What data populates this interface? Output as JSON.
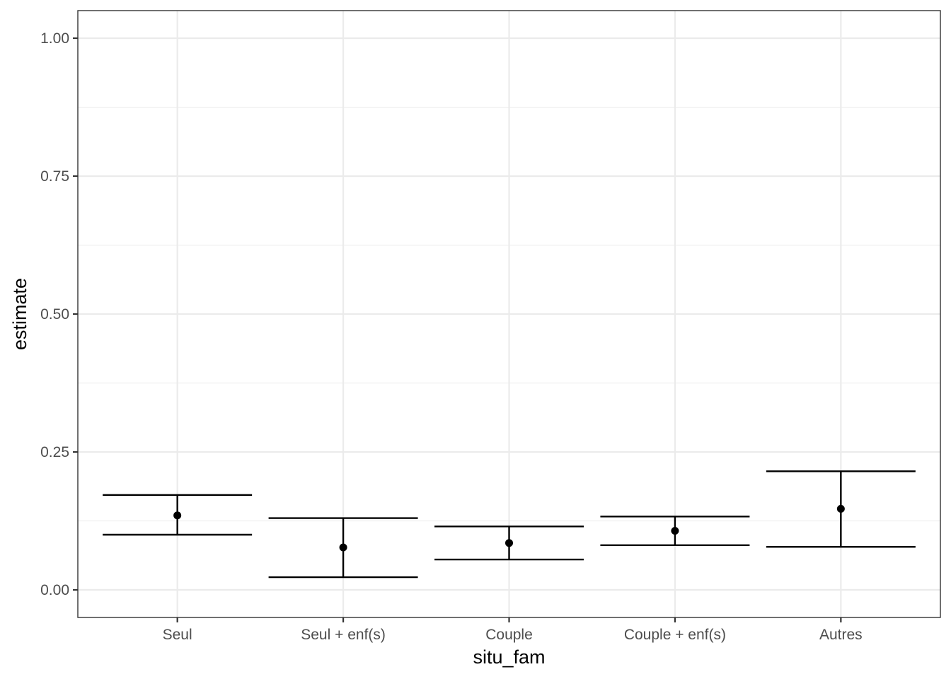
{
  "chart_data": {
    "type": "errorbar",
    "title": "",
    "xlabel": "situ_fam",
    "ylabel": "estimate",
    "ylim": [
      -0.05,
      1.05
    ],
    "yticks": [
      0.0,
      0.25,
      0.5,
      0.75,
      1.0
    ],
    "ytick_labels": [
      "0.00",
      "0.25",
      "0.50",
      "0.75",
      "1.00"
    ],
    "grid": true,
    "categories": [
      "Seul",
      "Seul + enf(s)",
      "Couple",
      "Couple + enf(s)",
      "Autres"
    ],
    "series": [
      {
        "estimate": [
          0.135,
          0.077,
          0.085,
          0.107,
          0.147
        ],
        "lower": [
          0.1,
          0.023,
          0.055,
          0.081,
          0.078
        ],
        "upper": [
          0.172,
          0.13,
          0.115,
          0.133,
          0.215
        ]
      }
    ],
    "colors": {
      "mark": "#000000",
      "grid": "#ebebeb",
      "panel_border": "#333333",
      "tick_text": "#4d4d4d"
    }
  }
}
